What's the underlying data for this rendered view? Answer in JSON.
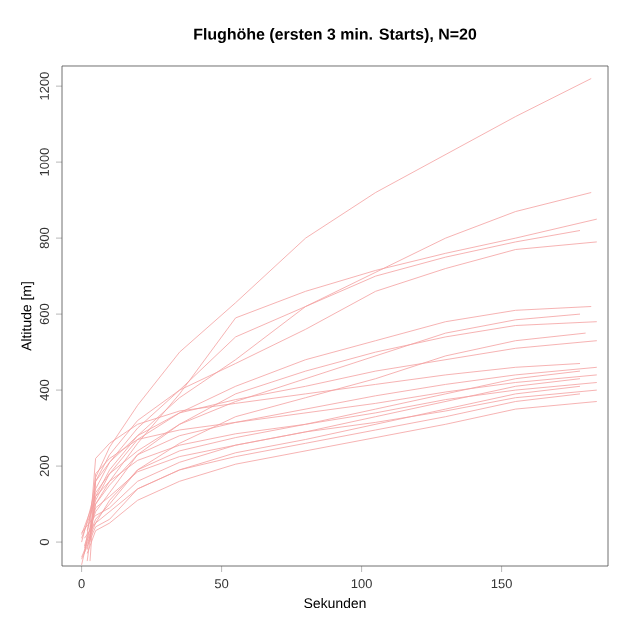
{
  "chart_data": {
    "type": "line",
    "title": "Flughöhe (ersten 3 min. Starts), N=20",
    "xlabel": "Sekunden",
    "ylabel": "Altitude [m]",
    "xlim": [
      -7,
      188
    ],
    "ylim": [
      -63,
      1253
    ],
    "xticks": [
      0,
      50,
      100,
      150
    ],
    "yticks": [
      0,
      200,
      400,
      600,
      800,
      1000,
      1200
    ],
    "grid": false,
    "marker": "none",
    "line_style": "solid",
    "series": [
      {
        "color": "#f4a0a0",
        "x": [
          1,
          5,
          10,
          20,
          35,
          55,
          80,
          105,
          130,
          155,
          182
        ],
        "values": [
          -30,
          170,
          250,
          360,
          500,
          630,
          800,
          920,
          1020,
          1120,
          1220
        ]
      },
      {
        "color": "#f4a0a0",
        "x": [
          0,
          5,
          10,
          20,
          35,
          55,
          80,
          105,
          130,
          155,
          182
        ],
        "values": [
          0,
          140,
          210,
          300,
          400,
          540,
          620,
          710,
          800,
          870,
          920
        ]
      },
      {
        "color": "#f4a0a0",
        "x": [
          2,
          5,
          10,
          20,
          35,
          55,
          80,
          105,
          130,
          155,
          184
        ],
        "values": [
          -20,
          100,
          160,
          260,
          390,
          590,
          660,
          715,
          760,
          800,
          850
        ]
      },
      {
        "color": "#f4a0a0",
        "x": [
          0,
          5,
          10,
          20,
          35,
          55,
          80,
          105,
          130,
          155,
          178
        ],
        "values": [
          20,
          120,
          190,
          280,
          380,
          480,
          620,
          700,
          750,
          790,
          820
        ]
      },
      {
        "color": "#f4a0a0",
        "x": [
          3,
          5,
          10,
          20,
          35,
          55,
          80,
          105,
          130,
          155,
          184
        ],
        "values": [
          -50,
          160,
          230,
          320,
          400,
          470,
          560,
          660,
          720,
          770,
          790
        ]
      },
      {
        "color": "#f4a0a0",
        "x": [
          0,
          5,
          10,
          20,
          35,
          55,
          80,
          105,
          130,
          155,
          182
        ],
        "values": [
          10,
          110,
          180,
          270,
          340,
          410,
          480,
          530,
          580,
          610,
          620
        ]
      },
      {
        "color": "#f4a0a0",
        "x": [
          1,
          5,
          10,
          20,
          35,
          55,
          80,
          105,
          130,
          155,
          178
        ],
        "values": [
          -10,
          80,
          130,
          230,
          310,
          370,
          430,
          490,
          550,
          585,
          600
        ]
      },
      {
        "color": "#f4a0a0",
        "x": [
          2,
          5,
          10,
          20,
          35,
          55,
          80,
          105,
          130,
          155,
          184
        ],
        "values": [
          30,
          130,
          180,
          240,
          310,
          390,
          450,
          500,
          540,
          570,
          580
        ]
      },
      {
        "color": "#f4a0a0",
        "x": [
          0,
          5,
          10,
          20,
          35,
          55,
          80,
          105,
          130,
          155,
          180
        ],
        "values": [
          -40,
          50,
          110,
          190,
          260,
          330,
          380,
          430,
          490,
          530,
          550
        ]
      },
      {
        "color": "#f4a0a0",
        "x": [
          3,
          5,
          10,
          20,
          35,
          55,
          80,
          105,
          130,
          155,
          184
        ],
        "values": [
          0,
          160,
          210,
          280,
          340,
          375,
          410,
          450,
          480,
          510,
          530
        ]
      },
      {
        "color": "#f4a0a0",
        "x": [
          3,
          5,
          10,
          20,
          35,
          55,
          80,
          105,
          130,
          155,
          178
        ],
        "values": [
          40,
          220,
          260,
          310,
          345,
          365,
          390,
          415,
          440,
          460,
          470
        ]
      },
      {
        "color": "#f4a0a0",
        "x": [
          0,
          5,
          10,
          20,
          35,
          55,
          80,
          105,
          130,
          155,
          184
        ],
        "values": [
          -60,
          100,
          150,
          230,
          280,
          315,
          350,
          385,
          415,
          440,
          460
        ]
      },
      {
        "color": "#f4a0a0",
        "x": [
          1,
          5,
          10,
          20,
          35,
          55,
          80,
          105,
          130,
          155,
          178
        ],
        "values": [
          -15,
          60,
          100,
          190,
          240,
          275,
          310,
          350,
          390,
          430,
          450
        ]
      },
      {
        "color": "#f4a0a0",
        "x": [
          3,
          5,
          10,
          20,
          35,
          55,
          80,
          105,
          130,
          155,
          184
        ],
        "values": [
          5,
          180,
          220,
          270,
          295,
          315,
          340,
          365,
          395,
          420,
          440
        ]
      },
      {
        "color": "#f4a0a0",
        "x": [
          0,
          5,
          10,
          20,
          35,
          55,
          80,
          105,
          130,
          155,
          178
        ],
        "values": [
          25,
          70,
          90,
          160,
          210,
          255,
          290,
          330,
          370,
          410,
          430
        ]
      },
      {
        "color": "#f4a0a0",
        "x": [
          2,
          5,
          10,
          20,
          35,
          55,
          80,
          105,
          130,
          155,
          184
        ],
        "values": [
          -50,
          120,
          160,
          215,
          255,
          285,
          310,
          340,
          375,
          400,
          420
        ]
      },
      {
        "color": "#f4a0a0",
        "x": [
          0,
          5,
          10,
          20,
          35,
          55,
          80,
          105,
          130,
          155,
          178
        ],
        "values": [
          -45,
          40,
          60,
          140,
          190,
          235,
          270,
          310,
          350,
          390,
          410
        ]
      },
      {
        "color": "#f4a0a0",
        "x": [
          3,
          5,
          10,
          20,
          35,
          55,
          80,
          105,
          130,
          155,
          184
        ],
        "values": [
          35,
          90,
          120,
          185,
          225,
          255,
          290,
          315,
          345,
          380,
          400
        ]
      },
      {
        "color": "#f4a0a0",
        "x": [
          1,
          5,
          10,
          20,
          35,
          55,
          80,
          105,
          130,
          155,
          178
        ],
        "values": [
          10,
          50,
          80,
          140,
          190,
          225,
          260,
          295,
          330,
          370,
          390
        ]
      },
      {
        "color": "#f4a0a0",
        "x": [
          2,
          5,
          10,
          20,
          35,
          55,
          80,
          105,
          130,
          155,
          184
        ],
        "values": [
          -30,
          30,
          50,
          110,
          160,
          205,
          240,
          275,
          310,
          350,
          370
        ]
      }
    ]
  }
}
